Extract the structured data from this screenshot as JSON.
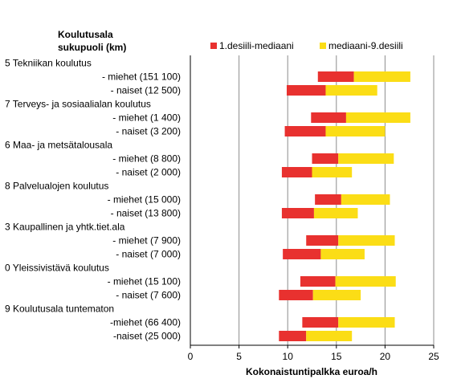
{
  "chart_data": {
    "type": "bar",
    "stacked": true,
    "orientation": "horizontal",
    "category_header": [
      "Koulutusala",
      "sukupuoli (km)"
    ],
    "xlabel": "Kokonaistuntipalkka euroa/h",
    "xlim": [
      0,
      25
    ],
    "x_ticks": [
      "0",
      "5",
      "10",
      "15",
      "20",
      "25"
    ],
    "grid": "vertical",
    "legend_position": "top-right",
    "colors": {
      "d1_to_median": "#e8312f",
      "median_to_d9": "#fbdd16",
      "grid": "#8c8c8c",
      "axis": "#000000"
    },
    "series_names": [
      "1.desiili-mediaani",
      "mediaani-9.desiili"
    ],
    "rows": [
      {
        "label": "5 Tekniikan  koulutus",
        "group": true
      },
      {
        "label": "- miehet (151 100)",
        "d1": 13.1,
        "median": 16.8,
        "d9": 22.6
      },
      {
        "label": "- naiset (12 500)",
        "d1": 9.9,
        "median": 13.9,
        "d9": 19.2
      },
      {
        "label": "7 Terveys-  ja sosiaalialan koulutus",
        "group": true
      },
      {
        "label": "- miehet (1 400)",
        "d1": 12.4,
        "median": 16.0,
        "d9": 22.6
      },
      {
        "label": "- naiset (3 200)",
        "d1": 9.7,
        "median": 13.9,
        "d9": 20.0
      },
      {
        "label": "6 Maa-  ja metsätalousala",
        "group": true
      },
      {
        "label": "- miehet (8 800)",
        "d1": 12.5,
        "median": 15.2,
        "d9": 20.9
      },
      {
        "label": "- naiset (2 000)",
        "d1": 9.4,
        "median": 12.5,
        "d9": 16.6
      },
      {
        "label": "8 Palvelualojen koulutus",
        "group": true
      },
      {
        "label": "- miehet (15 000)",
        "d1": 12.8,
        "median": 15.5,
        "d9": 20.5
      },
      {
        "label": "- naiset (13 800)",
        "d1": 9.4,
        "median": 12.7,
        "d9": 17.2
      },
      {
        "label": "3 Kaupallinen ja yhtk.tiet.ala",
        "group": true
      },
      {
        "label": "- miehet (7 900)",
        "d1": 11.9,
        "median": 15.2,
        "d9": 21.0
      },
      {
        "label": "- naiset (7 000)",
        "d1": 9.5,
        "median": 13.4,
        "d9": 17.9
      },
      {
        "label": "0 Yleissivistävä koulutus",
        "group": true
      },
      {
        "label": "- miehet (15 100)",
        "d1": 11.3,
        "median": 14.9,
        "d9": 21.1
      },
      {
        "label": "- naiset (7 600)",
        "d1": 9.1,
        "median": 12.6,
        "d9": 17.5
      },
      {
        "label": "9 Koulutusala tuntematon",
        "group": true
      },
      {
        "label": "-miehet (66 400)",
        "d1": 11.5,
        "median": 15.2,
        "d9": 21.0
      },
      {
        "label": "-naiset (25 000)",
        "d1": 9.1,
        "median": 11.9,
        "d9": 16.6
      }
    ]
  }
}
